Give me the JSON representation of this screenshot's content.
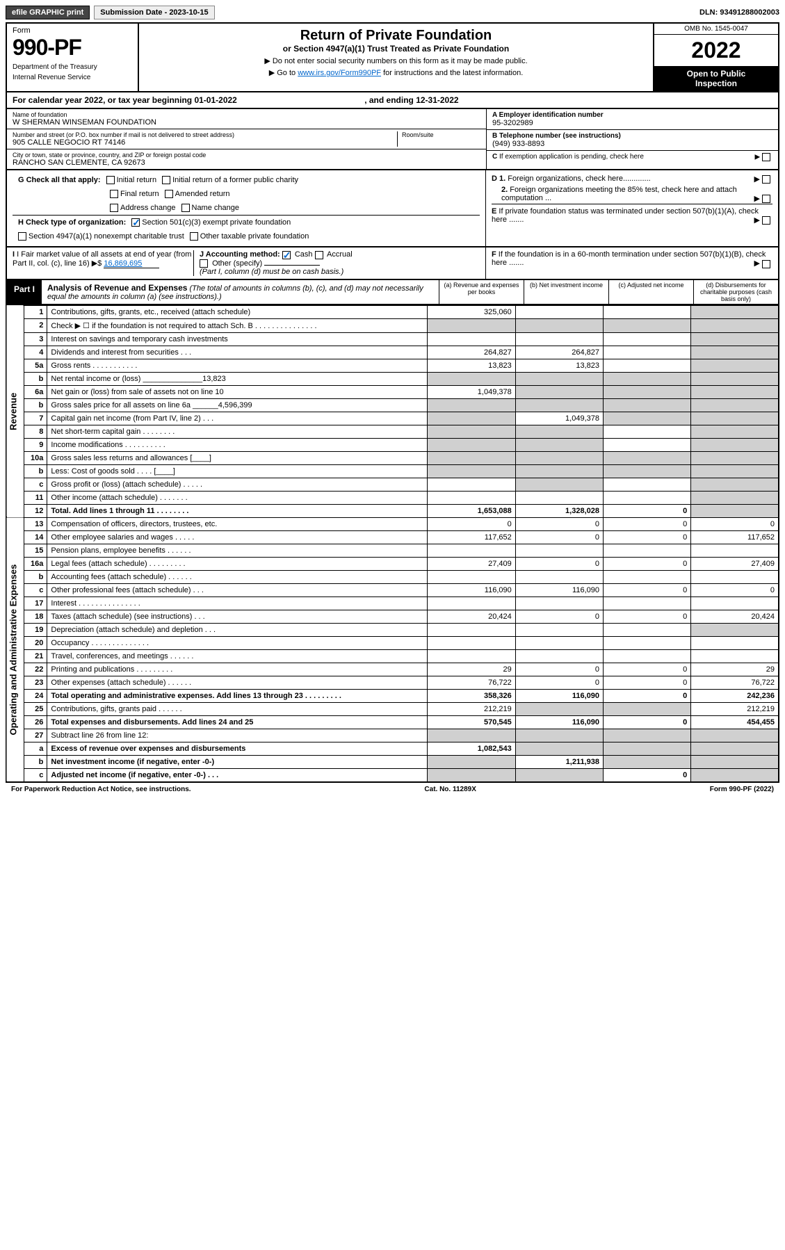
{
  "topbar": {
    "efile": "efile GRAPHIC print",
    "submission_label": "Submission Date - 2023-10-15",
    "dln_label": "DLN: 93491288002003"
  },
  "header": {
    "form_word": "Form",
    "form_number": "990-PF",
    "dept1": "Department of the Treasury",
    "dept2": "Internal Revenue Service",
    "title": "Return of Private Foundation",
    "subtitle": "or Section 4947(a)(1) Trust Treated as Private Foundation",
    "note1": "▶ Do not enter social security numbers on this form as it may be made public.",
    "note2_pre": "▶ Go to ",
    "note2_link": "www.irs.gov/Form990PF",
    "note2_post": " for instructions and the latest information.",
    "omb": "OMB No. 1545-0047",
    "year": "2022",
    "open_pub1": "Open to Public",
    "open_pub2": "Inspection"
  },
  "cal_year": {
    "text_pre": "For calendar year 2022, or tax year beginning ",
    "begin": "01-01-2022",
    "mid": " , and ending ",
    "end": "12-31-2022"
  },
  "entity": {
    "name_lbl": "Name of foundation",
    "name": "W SHERMAN WINSEMAN FOUNDATION",
    "addr_lbl": "Number and street (or P.O. box number if mail is not delivered to street address)",
    "addr": "905 CALLE NEGOCIO RT 74146",
    "room_lbl": "Room/suite",
    "city_lbl": "City or town, state or province, country, and ZIP or foreign postal code",
    "city": "RANCHO SAN CLEMENTE, CA  92673",
    "ein_lbl": "A Employer identification number",
    "ein": "95-3202989",
    "phone_lbl": "B Telephone number (see instructions)",
    "phone": "(949) 933-8893",
    "c_lbl": "C If exemption application is pending, check here",
    "d1_lbl": "D 1. Foreign organizations, check here.............",
    "d2_lbl": "2. Foreign organizations meeting the 85% test, check here and attach computation ...",
    "e_lbl": "E  If private foundation status was terminated under section 507(b)(1)(A), check here .......",
    "f_lbl": "F  If the foundation is in a 60-month termination under section 507(b)(1)(B), check here ......."
  },
  "checks": {
    "g_lbl": "G Check all that apply:",
    "g_opts": [
      "Initial return",
      "Initial return of a former public charity",
      "Final return",
      "Amended return",
      "Address change",
      "Name change"
    ],
    "h_lbl": "H Check type of organization:",
    "h1": "Section 501(c)(3) exempt private foundation",
    "h2": "Section 4947(a)(1) nonexempt charitable trust",
    "h3": "Other taxable private foundation",
    "i_lbl": "I Fair market value of all assets at end of year (from Part II, col. (c), line 16)",
    "i_val": "16,869,695",
    "j_lbl": "J Accounting method:",
    "j_cash": "Cash",
    "j_accrual": "Accrual",
    "j_other": "Other (specify)",
    "j_note": "(Part I, column (d) must be on cash basis.)"
  },
  "part1": {
    "badge": "Part I",
    "title": "Analysis of Revenue and Expenses",
    "title_note": "(The total of amounts in columns (b), (c), and (d) may not necessarily equal the amounts in column (a) (see instructions).)",
    "col_a": "(a) Revenue and expenses per books",
    "col_b": "(b) Net investment income",
    "col_c": "(c) Adjusted net income",
    "col_d": "(d) Disbursements for charitable purposes (cash basis only)",
    "side_rev": "Revenue",
    "side_exp": "Operating and Administrative Expenses"
  },
  "rows": [
    {
      "ln": "1",
      "desc": "Contributions, gifts, grants, etc., received (attach schedule)",
      "a": "325,060",
      "b": "",
      "c": "",
      "d": "",
      "d_shade": true
    },
    {
      "ln": "2",
      "desc": "Check ▶ ☐ if the foundation is not required to attach Sch. B     .   .   .   .   .   .   .   .   .   .   .   .   .   .   .",
      "a": "",
      "b": "",
      "c": "",
      "d": "",
      "all_shade": true
    },
    {
      "ln": "3",
      "desc": "Interest on savings and temporary cash investments",
      "a": "",
      "b": "",
      "c": "",
      "d": "",
      "d_shade": true
    },
    {
      "ln": "4",
      "desc": "Dividends and interest from securities     .    .    .",
      "a": "264,827",
      "b": "264,827",
      "c": "",
      "d": "",
      "d_shade": true
    },
    {
      "ln": "5a",
      "desc": "Gross rents    .    .    .    .    .    .    .    .    .    .    .",
      "a": "13,823",
      "b": "13,823",
      "c": "",
      "d": "",
      "d_shade": true
    },
    {
      "ln": "b",
      "desc": "Net rental income or (loss) ______________13,823",
      "a": "",
      "b": "",
      "c": "",
      "d": "",
      "all_shade": true
    },
    {
      "ln": "6a",
      "desc": "Net gain or (loss) from sale of assets not on line 10",
      "a": "1,049,378",
      "b": "",
      "c": "",
      "d": "",
      "b_shade": true,
      "c_shade": true,
      "d_shade": true
    },
    {
      "ln": "b",
      "desc": "Gross sales price for all assets on line 6a ______4,596,399",
      "a": "",
      "b": "",
      "c": "",
      "d": "",
      "all_shade": true
    },
    {
      "ln": "7",
      "desc": "Capital gain net income (from Part IV, line 2)    .   .   .",
      "a": "",
      "b": "1,049,378",
      "c": "",
      "d": "",
      "a_shade": true,
      "c_shade": true,
      "d_shade": true
    },
    {
      "ln": "8",
      "desc": "Net short-term capital gain   .   .   .   .   .   .   .   .",
      "a": "",
      "b": "",
      "c": "",
      "d": "",
      "a_shade": true,
      "b_shade": true,
      "d_shade": true
    },
    {
      "ln": "9",
      "desc": "Income modifications  .   .   .   .   .   .   .   .   .   .",
      "a": "",
      "b": "",
      "c": "",
      "d": "",
      "a_shade": true,
      "b_shade": true,
      "d_shade": true
    },
    {
      "ln": "10a",
      "desc": "Gross sales less returns and allowances  [____]",
      "a": "",
      "b": "",
      "c": "",
      "d": "",
      "all_shade": true
    },
    {
      "ln": "b",
      "desc": "Less: Cost of goods sold    .    .    .    .   [____]",
      "a": "",
      "b": "",
      "c": "",
      "d": "",
      "all_shade": true
    },
    {
      "ln": "c",
      "desc": "Gross profit or (loss) (attach schedule)    .   .   .   .   .",
      "a": "",
      "b": "",
      "c": "",
      "d": "",
      "b_shade": true,
      "d_shade": true
    },
    {
      "ln": "11",
      "desc": "Other income (attach schedule)    .   .   .   .   .   .   .",
      "a": "",
      "b": "",
      "c": "",
      "d": "",
      "d_shade": true
    },
    {
      "ln": "12",
      "desc": "Total. Add lines 1 through 11    .   .   .   .   .   .   .   .",
      "a": "1,653,088",
      "b": "1,328,028",
      "c": "0",
      "d": "",
      "d_shade": true,
      "bold": true
    },
    {
      "ln": "13",
      "desc": "Compensation of officers, directors, trustees, etc.",
      "a": "0",
      "b": "0",
      "c": "0",
      "d": "0"
    },
    {
      "ln": "14",
      "desc": "Other employee salaries and wages    .   .   .   .   .",
      "a": "117,652",
      "b": "0",
      "c": "0",
      "d": "117,652"
    },
    {
      "ln": "15",
      "desc": "Pension plans, employee benefits  .   .   .   .   .   .",
      "a": "",
      "b": "",
      "c": "",
      "d": ""
    },
    {
      "ln": "16a",
      "desc": "Legal fees (attach schedule) .   .   .   .   .   .   .   .   .",
      "a": "27,409",
      "b": "0",
      "c": "0",
      "d": "27,409"
    },
    {
      "ln": "b",
      "desc": "Accounting fees (attach schedule) .   .   .   .   .   .",
      "a": "",
      "b": "",
      "c": "",
      "d": ""
    },
    {
      "ln": "c",
      "desc": "Other professional fees (attach schedule)    .   .   .",
      "a": "116,090",
      "b": "116,090",
      "c": "0",
      "d": "0"
    },
    {
      "ln": "17",
      "desc": "Interest .   .   .   .   .   .   .   .   .   .   .   .   .   .   .",
      "a": "",
      "b": "",
      "c": "",
      "d": ""
    },
    {
      "ln": "18",
      "desc": "Taxes (attach schedule) (see instructions)    .   .   .",
      "a": "20,424",
      "b": "0",
      "c": "0",
      "d": "20,424"
    },
    {
      "ln": "19",
      "desc": "Depreciation (attach schedule) and depletion    .   .   .",
      "a": "",
      "b": "",
      "c": "",
      "d": "",
      "d_shade": true
    },
    {
      "ln": "20",
      "desc": "Occupancy .   .   .   .   .   .   .   .   .   .   .   .   .   .",
      "a": "",
      "b": "",
      "c": "",
      "d": ""
    },
    {
      "ln": "21",
      "desc": "Travel, conferences, and meetings .   .   .   .   .   .",
      "a": "",
      "b": "",
      "c": "",
      "d": ""
    },
    {
      "ln": "22",
      "desc": "Printing and publications .   .   .   .   .   .   .   .   .",
      "a": "29",
      "b": "0",
      "c": "0",
      "d": "29"
    },
    {
      "ln": "23",
      "desc": "Other expenses (attach schedule) .   .   .   .   .   .",
      "a": "76,722",
      "b": "0",
      "c": "0",
      "d": "76,722"
    },
    {
      "ln": "24",
      "desc": "Total operating and administrative expenses. Add lines 13 through 23   .   .   .   .   .   .   .   .   .",
      "a": "358,326",
      "b": "116,090",
      "c": "0",
      "d": "242,236",
      "bold": true
    },
    {
      "ln": "25",
      "desc": "Contributions, gifts, grants paid    .   .   .   .   .   .",
      "a": "212,219",
      "b": "",
      "c": "",
      "d": "212,219",
      "b_shade": true,
      "c_shade": true
    },
    {
      "ln": "26",
      "desc": "Total expenses and disbursements. Add lines 24 and 25",
      "a": "570,545",
      "b": "116,090",
      "c": "0",
      "d": "454,455",
      "bold": true
    },
    {
      "ln": "27",
      "desc": "Subtract line 26 from line 12:",
      "a": "",
      "b": "",
      "c": "",
      "d": "",
      "all_shade": true
    },
    {
      "ln": "a",
      "desc": "Excess of revenue over expenses and disbursements",
      "a": "1,082,543",
      "b": "",
      "c": "",
      "d": "",
      "b_shade": true,
      "c_shade": true,
      "d_shade": true,
      "bold": true
    },
    {
      "ln": "b",
      "desc": "Net investment income (if negative, enter -0-)",
      "a": "",
      "b": "1,211,938",
      "c": "",
      "d": "",
      "a_shade": true,
      "c_shade": true,
      "d_shade": true,
      "bold": true
    },
    {
      "ln": "c",
      "desc": "Adjusted net income (if negative, enter -0-)   .   .   .",
      "a": "",
      "b": "",
      "c": "0",
      "d": "",
      "a_shade": true,
      "b_shade": true,
      "d_shade": true,
      "bold": true
    }
  ],
  "footer": {
    "left": "For Paperwork Reduction Act Notice, see instructions.",
    "mid": "Cat. No. 11289X",
    "right": "Form 990-PF (2022)"
  },
  "colors": {
    "shade": "#d0d0d0",
    "link": "#0066cc",
    "black": "#000000"
  }
}
